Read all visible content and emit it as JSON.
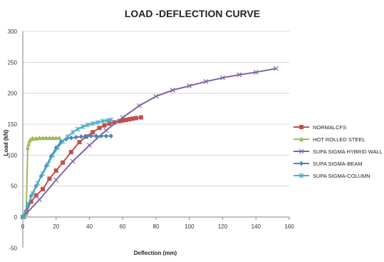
{
  "chart_data": {
    "type": "line",
    "title": "LOAD -DEFLECTION CURVE",
    "xlabel": "Deflection (mm)",
    "ylabel": "Load (kN)",
    "xlim": [
      0,
      160
    ],
    "ylim": [
      0,
      300
    ],
    "xticks": [
      0,
      20,
      40,
      60,
      80,
      100,
      120,
      140,
      160
    ],
    "yticks": [
      0,
      50,
      100,
      150,
      200,
      250,
      300
    ],
    "yticks_extra": [
      -50
    ],
    "grid": true,
    "legend_position": "right",
    "series": [
      {
        "name": "NORMALCFS",
        "color": "#C0504D",
        "marker": "square",
        "x": [
          0,
          2,
          5,
          8,
          12,
          16,
          20,
          24,
          29,
          34,
          38,
          42,
          46,
          49,
          52,
          55,
          58,
          60,
          62,
          64,
          66,
          68,
          71
        ],
        "y": [
          0,
          8,
          25,
          35,
          45,
          62,
          75,
          88,
          105,
          121,
          130,
          137,
          144,
          148,
          151,
          153,
          155,
          156,
          157,
          158,
          159,
          160,
          161
        ]
      },
      {
        "name": "HOT ROLLED STEEL",
        "color": "#9BBB59",
        "marker": "triangle",
        "x": [
          0,
          1,
          2,
          3,
          3.5,
          4,
          5,
          6,
          8,
          10,
          12,
          14,
          16,
          18,
          20,
          22
        ],
        "y": [
          0,
          0,
          5,
          112,
          118,
          123,
          126,
          127,
          127,
          128,
          128,
          128,
          128,
          128,
          128,
          128
        ]
      },
      {
        "name": "SUPA SIGMA  HYBRID WALL",
        "color": "#8064A2",
        "marker": "x",
        "x": [
          0,
          10,
          20,
          30,
          40,
          50,
          60,
          70,
          80,
          90,
          100,
          110,
          120,
          130,
          140,
          152
        ],
        "y": [
          0,
          28,
          60,
          90,
          116,
          140,
          161,
          180,
          195,
          205,
          212,
          219,
          225,
          230,
          234,
          240
        ]
      },
      {
        "name": "SUPA SIGMA-BEAM",
        "color": "#4F81BD",
        "marker": "diamond",
        "x": [
          0,
          3,
          5,
          8,
          11,
          14,
          17,
          20,
          23,
          26,
          29,
          32,
          35,
          38,
          41,
          44,
          47,
          50,
          53
        ],
        "y": [
          0,
          17,
          34,
          50,
          66,
          82,
          98,
          112,
          122,
          126,
          128,
          129,
          130,
          130,
          131,
          131,
          131,
          131,
          131
        ]
      },
      {
        "name": "SUPA SIGMA-COLUMN",
        "color": "#4BACC6",
        "marker": "star",
        "x": [
          0,
          3,
          6,
          9,
          12,
          15,
          18,
          21,
          24,
          27,
          30,
          33,
          36,
          39,
          42,
          45,
          48,
          51,
          53
        ],
        "y": [
          0,
          20,
          38,
          55,
          70,
          85,
          100,
          112,
          122,
          130,
          137,
          142,
          146,
          149,
          151,
          153,
          155,
          156,
          157
        ]
      }
    ]
  }
}
